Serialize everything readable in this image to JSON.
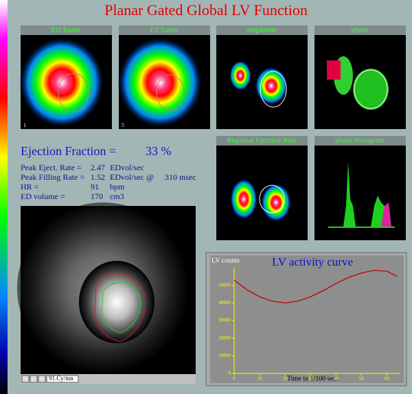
{
  "title": "Planar Gated Global LV Function",
  "panels": [
    {
      "label": "ED frame",
      "frame": "1"
    },
    {
      "label": "ES frame",
      "frame": "5"
    },
    {
      "label": "amplitude"
    },
    {
      "label": "phase"
    },
    {
      "label": "Regional Ejection Rate"
    },
    {
      "label": "phase histogram"
    }
  ],
  "results": {
    "ef_label": "Ejection Fraction =",
    "ef_value": "33 %",
    "rows": [
      [
        "Peak Eject. Rate =",
        "2.47",
        "EDvol/sec"
      ],
      [
        "Peak Filling Rate =",
        "1.52",
        "EDvol/sec @",
        "310 msec"
      ],
      [
        "HR =",
        "91",
        "bpm"
      ],
      [
        "ED volume =",
        "170",
        "cm3"
      ]
    ]
  },
  "cine_control": "91.Cy/mn",
  "chart_data": {
    "type": "line",
    "title": "LV activity curve",
    "ylabel": "LV counts",
    "xlabel": "Time in 1/100 sec.",
    "x": [
      0,
      5,
      10,
      15,
      20,
      25,
      30,
      35,
      40,
      45,
      50,
      55,
      60,
      64
    ],
    "series": [
      {
        "color": "#c00000",
        "values": [
          53000,
          47500,
          43500,
          41000,
          40000,
          41000,
          43500,
          47000,
          51000,
          54500,
          57000,
          58500,
          58000,
          55000
        ]
      }
    ],
    "xlim": [
      0,
      65
    ],
    "xticks": [
      0,
      10,
      20,
      30,
      40,
      50,
      60
    ],
    "ylim": [
      0,
      60000
    ],
    "yticks": [
      0,
      10000,
      20000,
      30000,
      40000,
      50000
    ]
  }
}
